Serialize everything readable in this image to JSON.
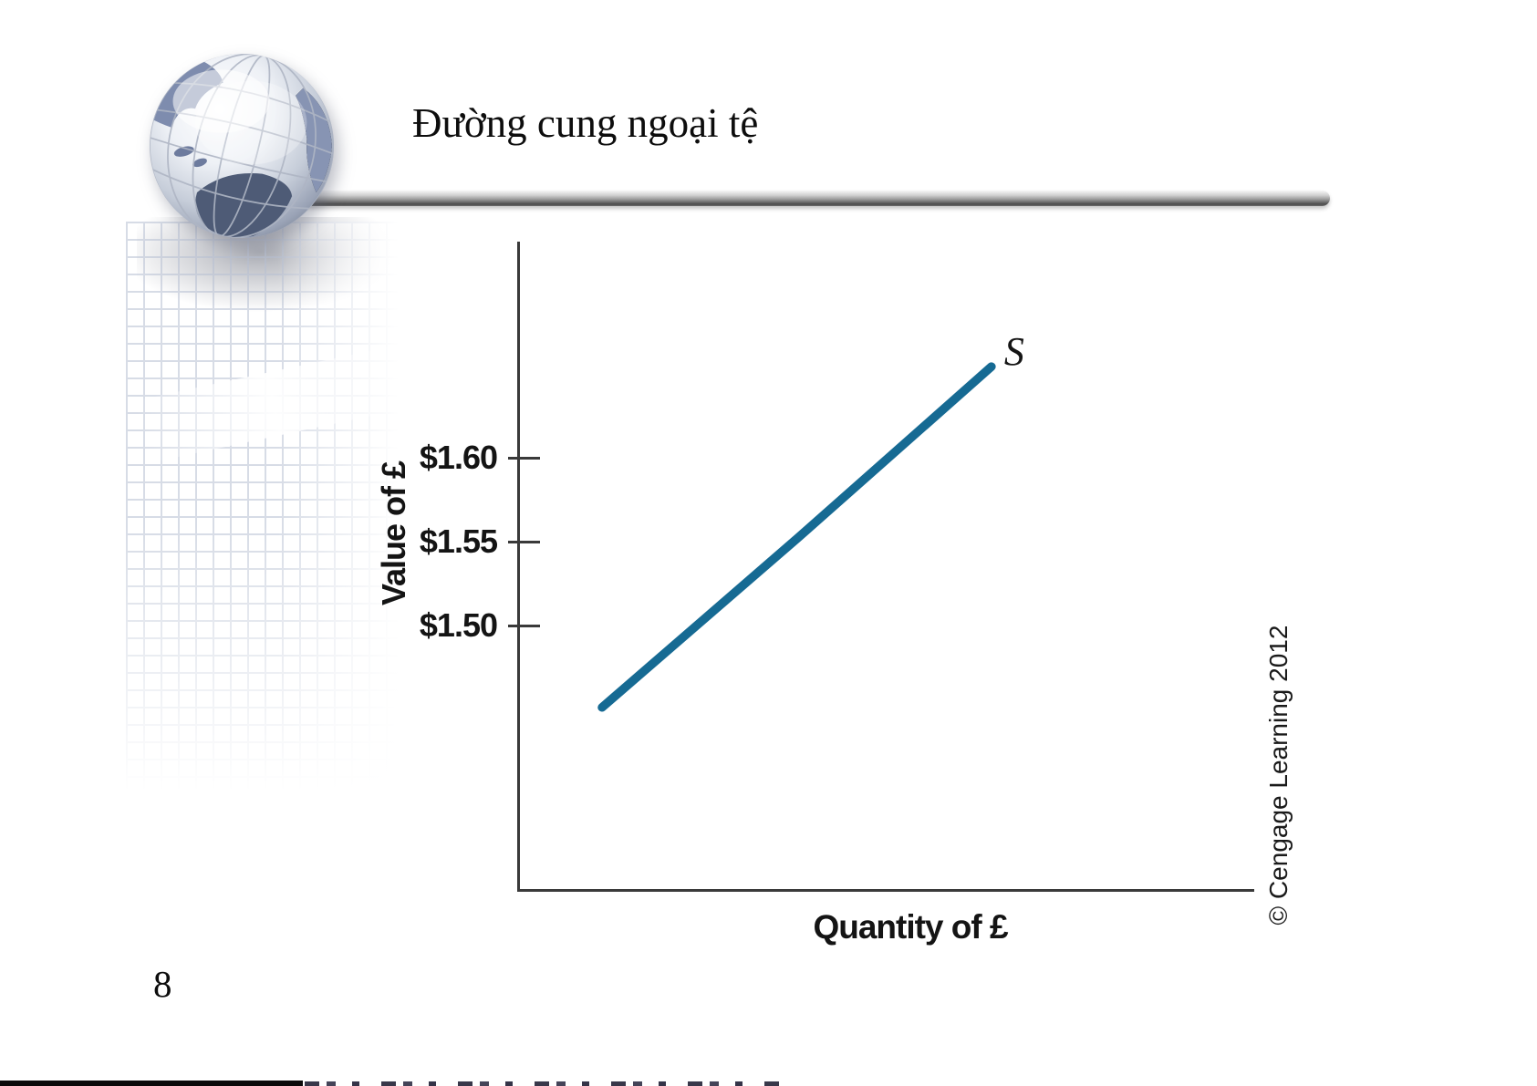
{
  "slide": {
    "title": "Đường cung ngoại tệ",
    "page_number": "8"
  },
  "chart": {
    "ylabel": "Value of £",
    "xlabel": "Quantity of £",
    "yticks": [
      "$1.60",
      "$1.55",
      "$1.50"
    ],
    "curve_label": "S",
    "credit": "© Cengage Learning 2012"
  },
  "chart_data": {
    "type": "line",
    "title": "Đường cung ngoại tệ (supply curve of pounds)",
    "xlabel": "Quantity of £",
    "ylabel": "Value of £",
    "ytick_labels": [
      "$1.50",
      "$1.55",
      "$1.60"
    ],
    "ytick_values": [
      1.5,
      1.55,
      1.6
    ],
    "xticks": [],
    "grid": false,
    "legend": "none",
    "series": [
      {
        "name": "S",
        "color": "#166a93",
        "points": [
          {
            "x": 0.114,
            "y": 1.452
          },
          {
            "x": 0.38,
            "y": 1.5525
          },
          {
            "x": 0.643,
            "y": 1.654
          }
        ],
        "description": "Upward-sloping supply curve: value of £ rises from about $1.45 to about $1.65 as quantity of £ increases; x-axis has no numeric ticks"
      }
    ]
  },
  "colors": {
    "supply_line": "#166a93",
    "axis": "#3a3a3a",
    "text": "#111111"
  },
  "icons": {
    "globe": "globe-logo-icon"
  }
}
